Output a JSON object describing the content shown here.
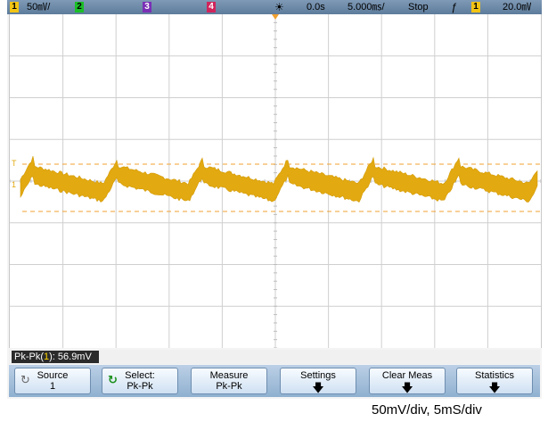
{
  "topbar": {
    "ch1_num": "1",
    "ch1_scale": "50㎷/",
    "ch2_num": "2",
    "ch3_num": "3",
    "ch4_num": "4",
    "trigger_icon": "☀",
    "delay": "0.0s",
    "timebase": "5.000㎳/",
    "run_state": "Stop",
    "slope_icon": "ƒ",
    "trig_ch_num": "1",
    "trig_level": "20.0㎷",
    "colors": {
      "ch1": "#f2c414",
      "ch2": "#1bbf28",
      "ch3": "#7a2fb5",
      "ch4": "#d0245b"
    }
  },
  "screen": {
    "markers": {
      "trigger_level": "T",
      "ground": "1"
    },
    "trace_color": "#e2a911",
    "ref_line_color": "#f0a030"
  },
  "measurement": {
    "label_prefix": "Pk-Pk(",
    "channel": "1",
    "label_suffix": "): 56.9mV"
  },
  "softkeys": [
    {
      "line1": "Source",
      "line2": "1",
      "icon": "↻",
      "arrow": false
    },
    {
      "line1": "Select:",
      "line2": "Pk-Pk",
      "icon": "↻",
      "arrow": false
    },
    {
      "line1": "Measure",
      "line2": "Pk-Pk",
      "icon": "",
      "arrow": false
    },
    {
      "line1": "Settings",
      "line2": "",
      "icon": "",
      "arrow": true
    },
    {
      "line1": "Clear Meas",
      "line2": "",
      "icon": "",
      "arrow": true
    },
    {
      "line1": "Statistics",
      "line2": "",
      "icon": "",
      "arrow": true
    }
  ],
  "caption": "50mV/div, 5mS/div"
}
